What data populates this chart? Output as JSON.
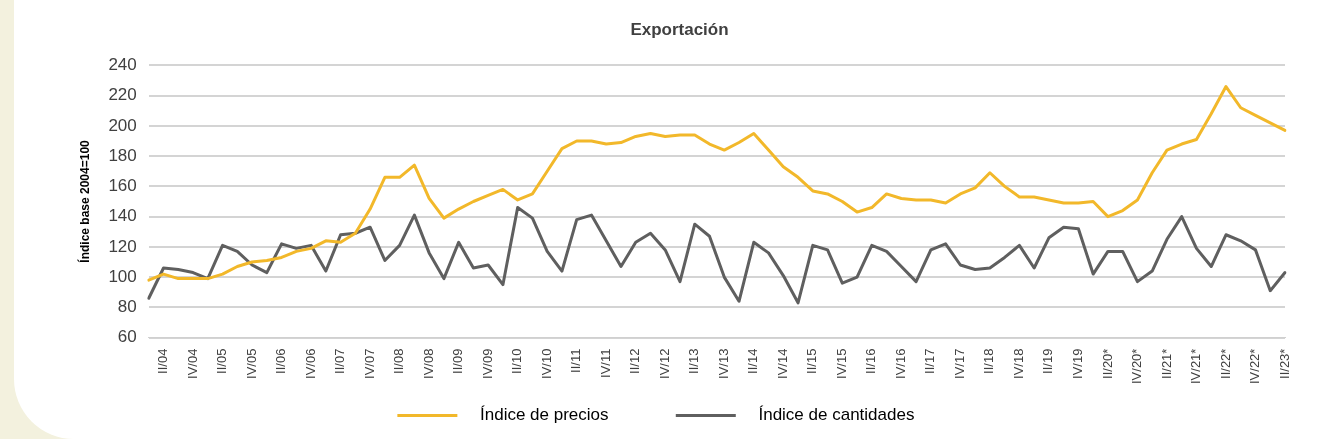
{
  "chart_data": {
    "type": "line",
    "title": "Exportación",
    "ylabel": "Índice base 2004=100",
    "categories": [
      null,
      "II/04",
      null,
      "IV/04",
      null,
      "II/05",
      null,
      "IV/05",
      null,
      "II/06",
      null,
      "IV/06",
      null,
      "II/07",
      null,
      "IV/07",
      null,
      "II/08",
      null,
      "IV/08",
      null,
      "II/09",
      null,
      "IV/09",
      null,
      "II/10",
      null,
      "IV/10",
      null,
      "II/11",
      null,
      "IV/11",
      null,
      "II/12",
      null,
      "IV/12",
      null,
      "II/13",
      null,
      "IV/13",
      null,
      "II/14",
      null,
      "IV/14",
      null,
      "II/15",
      null,
      "IV/15",
      null,
      "II/16",
      null,
      "IV/16",
      null,
      "II/17",
      null,
      "IV/17",
      null,
      "II/18",
      null,
      "IV/18",
      null,
      "II/19",
      null,
      "IV/19",
      null,
      "II/20*",
      null,
      "IV/20*",
      null,
      "II/21*",
      null,
      "IV/21*",
      null,
      "II/22*",
      null,
      "IV/22*",
      null,
      "II/23*"
    ],
    "series": [
      {
        "name": "Índice de precios",
        "color": "#f2b82a",
        "values": [
          98,
          102,
          99,
          99,
          99,
          102,
          107,
          110,
          111,
          113,
          117,
          119,
          124,
          123,
          129,
          145,
          166,
          166,
          174,
          152,
          139,
          145,
          150,
          154,
          158,
          151,
          155,
          170,
          185,
          190,
          190,
          188,
          189,
          193,
          195,
          193,
          194,
          194,
          188,
          184,
          189,
          195,
          184,
          173,
          166,
          157,
          155,
          150,
          143,
          146,
          155,
          152,
          151,
          151,
          149,
          155,
          159,
          169,
          160,
          153,
          153,
          151,
          149,
          149,
          150,
          140,
          144,
          151,
          169,
          184,
          188,
          191,
          208,
          226,
          212,
          207,
          202,
          197
        ]
      },
      {
        "name": "Índice de cantidades",
        "color": "#5f5f5f",
        "values": [
          86,
          106,
          105,
          103,
          99,
          121,
          117,
          108,
          103,
          122,
          119,
          121,
          104,
          128,
          129,
          133,
          111,
          121,
          141,
          116,
          99,
          123,
          106,
          108,
          95,
          146,
          139,
          117,
          104,
          138,
          141,
          124,
          107,
          123,
          129,
          118,
          97,
          135,
          127,
          100,
          84,
          123,
          116,
          101,
          83,
          121,
          118,
          96,
          100,
          121,
          117,
          107,
          97,
          118,
          122,
          108,
          105,
          106,
          113,
          121,
          106,
          126,
          133,
          132,
          102,
          117,
          117,
          97,
          104,
          125,
          140,
          119,
          107,
          128,
          124,
          118,
          91,
          103
        ]
      }
    ],
    "ylim": [
      60,
      240
    ],
    "yticks": [
      60,
      80,
      100,
      120,
      140,
      160,
      180,
      200,
      220,
      240
    ],
    "grid": "y",
    "legend": "bottom",
    "marker": "none",
    "line_style": "solid"
  }
}
